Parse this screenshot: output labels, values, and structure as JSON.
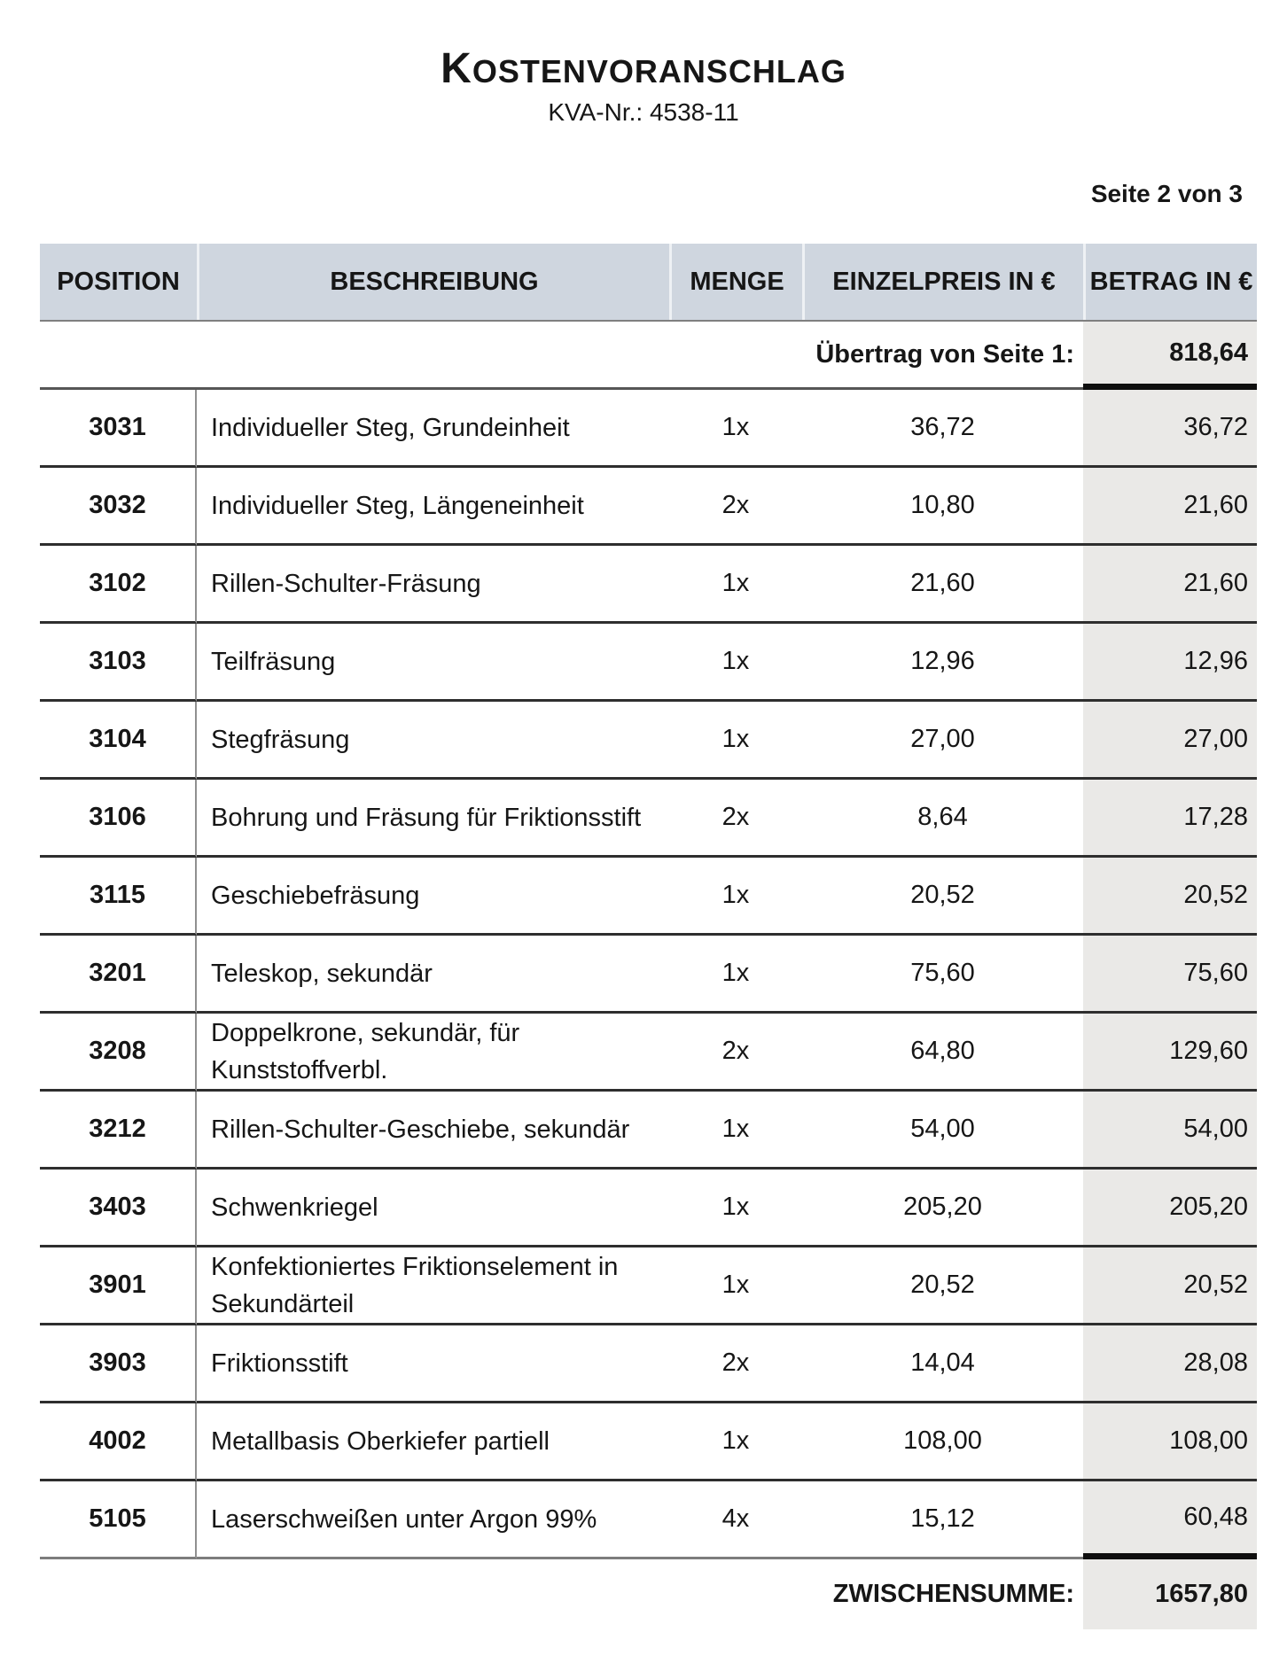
{
  "header": {
    "title": "KOSTENVORANSCHLAG",
    "subtitle": "KVA-Nr.: 4538-11",
    "page_indicator": "Seite 2 von 3"
  },
  "table": {
    "columns": [
      "POSITION",
      "BESCHREIBUNG",
      "MENGE",
      "EINZELPREIS IN €",
      "BETRAG IN €"
    ],
    "carryover": {
      "label": "Übertrag von Seite 1:",
      "amount": "818,64"
    },
    "rows": [
      {
        "position": "3031",
        "description": "Individueller Steg, Grundeinheit",
        "quantity": "1x",
        "unit_price": "36,72",
        "amount": "36,72"
      },
      {
        "position": "3032",
        "description": "Individueller Steg, Längeneinheit",
        "quantity": "2x",
        "unit_price": "10,80",
        "amount": "21,60"
      },
      {
        "position": "3102",
        "description": "Rillen-Schulter-Fräsung",
        "quantity": "1x",
        "unit_price": "21,60",
        "amount": "21,60"
      },
      {
        "position": "3103",
        "description": "Teilfräsung",
        "quantity": "1x",
        "unit_price": "12,96",
        "amount": "12,96"
      },
      {
        "position": "3104",
        "description": "Stegfräsung",
        "quantity": "1x",
        "unit_price": "27,00",
        "amount": "27,00"
      },
      {
        "position": "3106",
        "description": "Bohrung und Fräsung für Friktionsstift",
        "quantity": "2x",
        "unit_price": "8,64",
        "amount": "17,28"
      },
      {
        "position": "3115",
        "description": "Geschiebefräsung",
        "quantity": "1x",
        "unit_price": "20,52",
        "amount": "20,52"
      },
      {
        "position": "3201",
        "description": "Teleskop, sekundär",
        "quantity": "1x",
        "unit_price": "75,60",
        "amount": "75,60"
      },
      {
        "position": "3208",
        "description": "Doppelkrone, sekundär, für Kunststoffverbl.",
        "quantity": "2x",
        "unit_price": "64,80",
        "amount": "129,60"
      },
      {
        "position": "3212",
        "description": "Rillen-Schulter-Geschiebe, sekundär",
        "quantity": "1x",
        "unit_price": "54,00",
        "amount": "54,00"
      },
      {
        "position": "3403",
        "description": "Schwenkriegel",
        "quantity": "1x",
        "unit_price": "205,20",
        "amount": "205,20"
      },
      {
        "position": "3901",
        "description": "Konfektioniertes Friktionselement in Sekundärteil",
        "quantity": "1x",
        "unit_price": "20,52",
        "amount": "20,52"
      },
      {
        "position": "3903",
        "description": "Friktionsstift",
        "quantity": "2x",
        "unit_price": "14,04",
        "amount": "28,08"
      },
      {
        "position": "4002",
        "description": "Metallbasis Oberkiefer partiell",
        "quantity": "1x",
        "unit_price": "108,00",
        "amount": "108,00"
      },
      {
        "position": "5105",
        "description": "Laserschweißen unter Argon 99%",
        "quantity": "4x",
        "unit_price": "15,12",
        "amount": "60,48"
      }
    ],
    "subtotal": {
      "label": "ZWISCHENSUMME:",
      "amount": "1657,80"
    }
  },
  "colors": {
    "header_bg": "#cfd6df",
    "amount_column_bg": "#eae9e7",
    "text": "#161616"
  }
}
